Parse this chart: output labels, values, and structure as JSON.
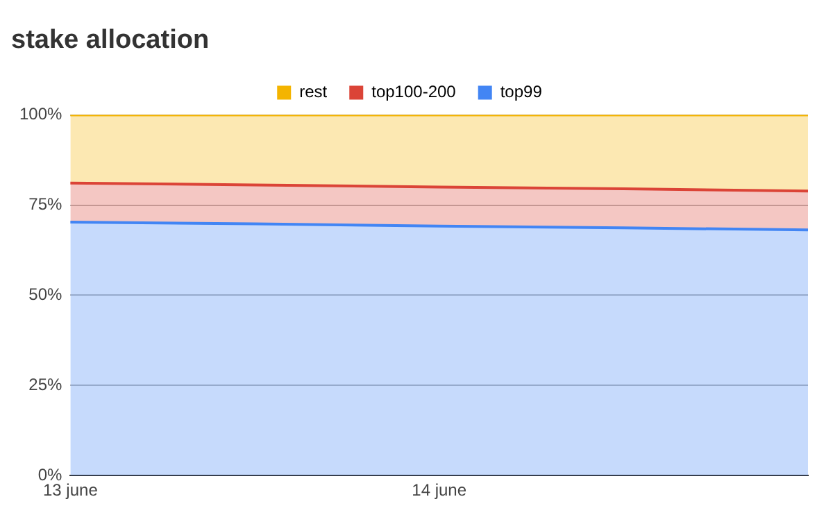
{
  "chart_data": {
    "type": "area",
    "title": "stake allocation",
    "categories": [
      "13 june",
      null,
      "14 june",
      null,
      null
    ],
    "stacked": true,
    "series": [
      {
        "name": "top99",
        "color": "#4285f4",
        "values": [
          70.3,
          69.8,
          69.2,
          68.7,
          68.1
        ]
      },
      {
        "name": "top100-200",
        "color": "#db4437",
        "values": [
          10.8,
          10.8,
          10.8,
          10.8,
          10.8
        ]
      },
      {
        "name": "rest",
        "color": "#f4b400",
        "values": [
          18.9,
          19.4,
          20,
          20.5,
          21.1
        ]
      }
    ],
    "ylim": [
      0,
      100
    ],
    "yticks": [
      {
        "value": 0,
        "label": "0%"
      },
      {
        "value": 25,
        "label": "25%"
      },
      {
        "value": 50,
        "label": "50%"
      },
      {
        "value": 75,
        "label": "75%"
      },
      {
        "value": 100,
        "label": "100%"
      }
    ],
    "grid": "y",
    "legend": "top",
    "marker": "none"
  }
}
